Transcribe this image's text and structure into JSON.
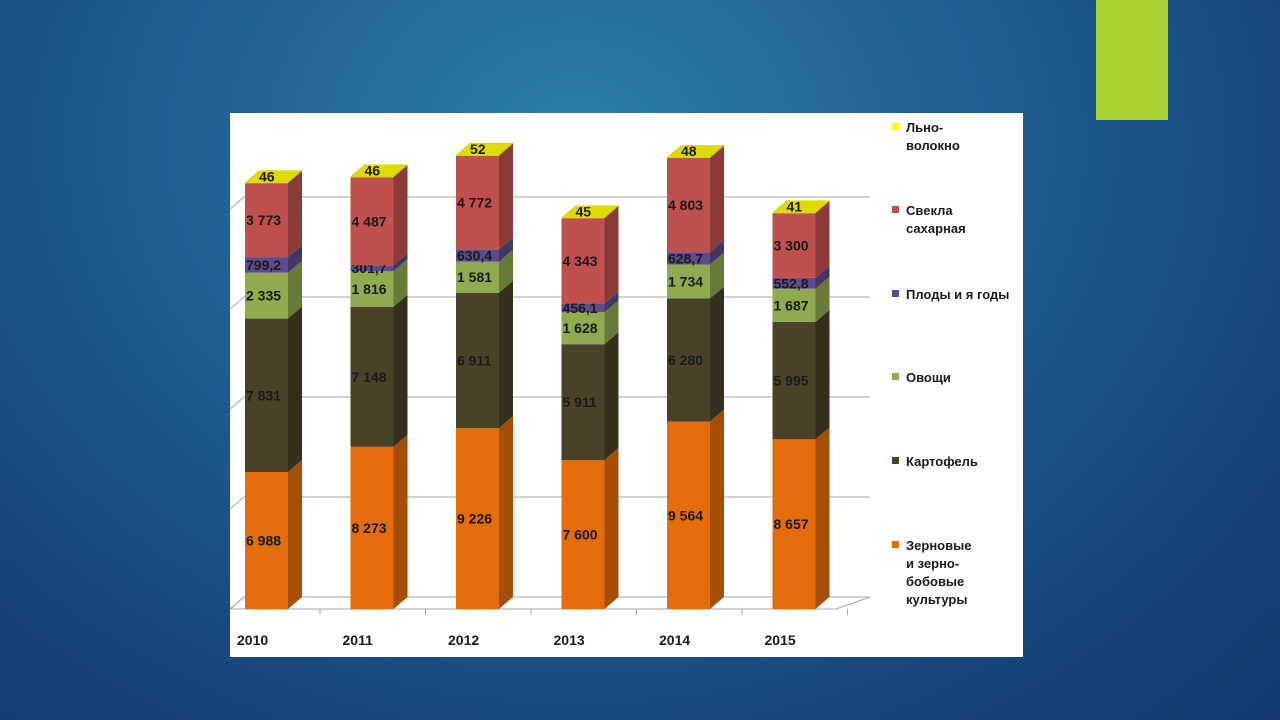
{
  "chart_data": {
    "type": "bar",
    "stacked": true,
    "three_d": true,
    "categories": [
      "2010",
      "2011",
      "2012",
      "2013",
      "2014",
      "2015"
    ],
    "series": [
      {
        "name": "Зерновые\nи зерно-\nбобовые\nкультуры",
        "color": "#e46c0a",
        "values": [
          6988,
          8273,
          9226,
          7600,
          9564,
          8657
        ],
        "labels": [
          "6 988",
          "8 273",
          "9 226",
          "7 600",
          "9 564",
          "8 657"
        ]
      },
      {
        "name": "Картофель",
        "color": "#4a4228",
        "values": [
          7831,
          7148,
          6911,
          5911,
          6280,
          5995
        ],
        "labels": [
          "7 831",
          "7 148",
          "6 911",
          "5 911",
          "6 280",
          "5 995"
        ]
      },
      {
        "name": "Овощи",
        "color": "#8faa4f",
        "values": [
          2335,
          1816,
          1581,
          1628,
          1734,
          1687
        ],
        "labels": [
          "2 335",
          "1 816",
          "1 581",
          "1 628",
          "1 734",
          "1 687"
        ]
      },
      {
        "name": "Плоды и я годы",
        "color": "#5f4b8b",
        "values": [
          799.2,
          301.7,
          630.4,
          456.1,
          628.7,
          552.8
        ],
        "labels": [
          "799,2",
          "301,7",
          "630,4",
          "456,1",
          "628,7",
          "552,8"
        ]
      },
      {
        "name": "Свекла\nсахарная",
        "color": "#c0504d",
        "values": [
          3773,
          4487,
          4772,
          4343,
          4803,
          3300
        ],
        "labels": [
          "3 773",
          "4 487",
          "4 772",
          "4 343",
          "4 803",
          "3 300"
        ]
      },
      {
        "name": "Льно-\nволокно",
        "color": "#d6d000",
        "values": [
          46,
          46,
          52,
          45,
          48,
          41
        ],
        "labels": [
          "46",
          "46",
          "52",
          "45",
          "48",
          "41"
        ]
      }
    ],
    "grid": true,
    "legend_position": "right"
  },
  "legend": [
    {
      "label": "Льно-\nволокно",
      "color": "#ffff00"
    },
    {
      "label": "Свекла\nсахарная",
      "color": "#c0504d"
    },
    {
      "label": "Плоды и я годы",
      "color": "#5f4b8b"
    },
    {
      "label": "Овощи",
      "color": "#8faa4f"
    },
    {
      "label": "Картофель",
      "color": "#4a4228"
    },
    {
      "label": "Зерновые\nи зерно-\nбобовые\nкультуры",
      "color": "#e46c0a"
    }
  ]
}
